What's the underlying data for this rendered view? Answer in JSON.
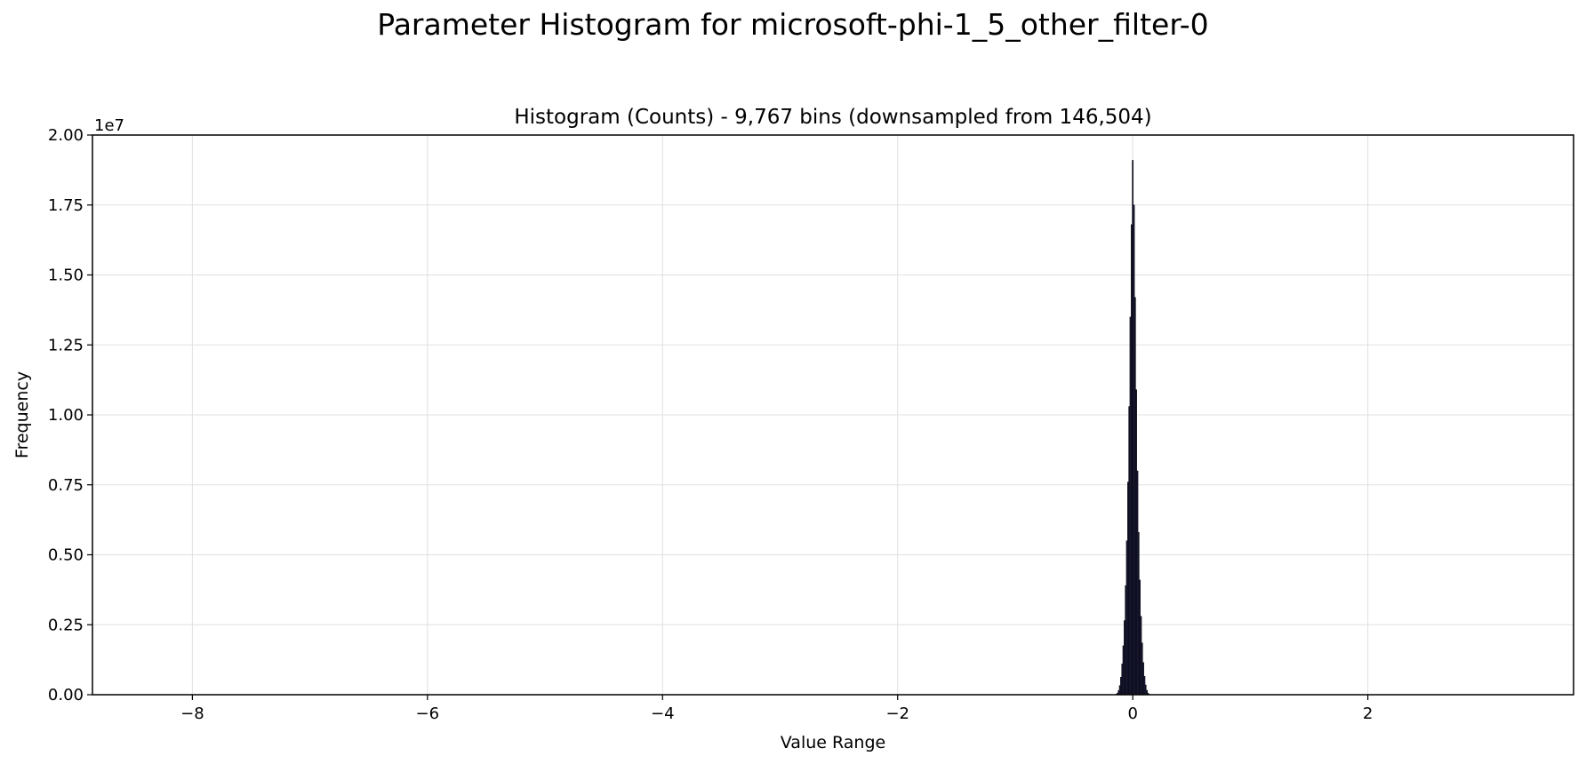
{
  "figure": {
    "suptitle": "Parameter Histogram for microsoft-phi-1_5_other_filter-0"
  },
  "chart_data": {
    "type": "bar",
    "title": "Histogram (Counts) - 9,767 bins (downsampled from 146,504)",
    "xlabel": "Value Range",
    "ylabel": "Frequency",
    "y_offset_label": "1e7",
    "xlim": [
      -8.85,
      3.75
    ],
    "ylim": [
      0,
      20000000
    ],
    "xticks": [
      -8,
      -6,
      -4,
      -2,
      0,
      2
    ],
    "xtick_labels": [
      "−8",
      "−6",
      "−4",
      "−2",
      "0",
      "2"
    ],
    "yticks": [
      0,
      2500000,
      5000000,
      7500000,
      10000000,
      12500000,
      15000000,
      17500000,
      20000000
    ],
    "ytick_labels": [
      "0.00",
      "0.25",
      "0.50",
      "0.75",
      "1.00",
      "1.25",
      "1.50",
      "1.75",
      "2.00"
    ],
    "grid": true,
    "bar_color": "#1a1a3a",
    "edge_color": "#000000",
    "grid_color": "#e0e0e0",
    "bins": {
      "x": [
        -0.14,
        -0.13,
        -0.12,
        -0.11,
        -0.1,
        -0.09,
        -0.08,
        -0.07,
        -0.06,
        -0.05,
        -0.04,
        -0.03,
        -0.02,
        -0.01,
        0.0,
        0.01,
        0.02,
        0.03,
        0.04,
        0.05,
        0.06,
        0.07,
        0.08,
        0.09,
        0.1,
        0.11,
        0.12,
        0.13,
        0.14
      ],
      "values": [
        20000,
        60000,
        150000,
        330000,
        630000,
        1100000,
        1750000,
        2650000,
        3900000,
        5500000,
        7600000,
        10300000,
        13500000,
        16800000,
        19100000,
        17500000,
        14200000,
        10900000,
        8000000,
        5800000,
        4100000,
        2800000,
        1850000,
        1150000,
        660000,
        350000,
        160000,
        60000,
        20000
      ]
    }
  }
}
